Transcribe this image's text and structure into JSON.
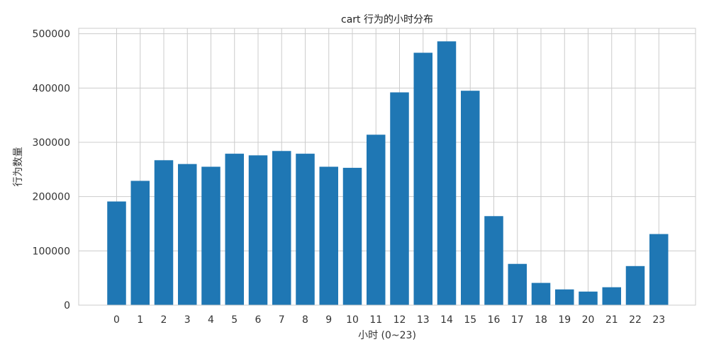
{
  "chart_data": {
    "type": "bar",
    "title": "cart 行为的小时分布",
    "xlabel": "小时 (0~23)",
    "ylabel": "行为数量",
    "categories": [
      "0",
      "1",
      "2",
      "3",
      "4",
      "5",
      "6",
      "7",
      "8",
      "9",
      "10",
      "11",
      "12",
      "13",
      "14",
      "15",
      "16",
      "17",
      "18",
      "19",
      "20",
      "21",
      "22",
      "23"
    ],
    "values": [
      191000,
      229000,
      267000,
      260000,
      255000,
      279000,
      276000,
      284000,
      279000,
      255000,
      253000,
      314000,
      392000,
      465000,
      486000,
      395000,
      164000,
      76000,
      41000,
      29000,
      25000,
      33000,
      72000,
      131000
    ],
    "ylim": [
      0,
      510000
    ],
    "yticks": [
      0,
      100000,
      200000,
      300000,
      400000,
      500000
    ],
    "ytick_labels": [
      "0",
      "100000",
      "200000",
      "300000",
      "400000",
      "500000"
    ],
    "grid": true,
    "bar_color": "#1f77b4"
  }
}
